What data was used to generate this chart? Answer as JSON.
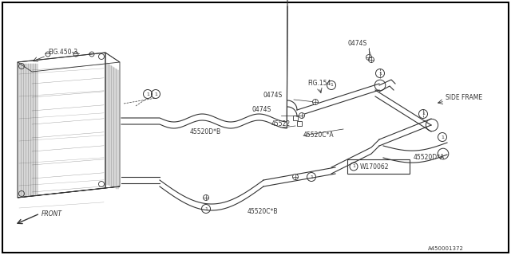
{
  "bg_color": "#ffffff",
  "line_color": "#333333",
  "diagram_id": "A450001372",
  "part_ref": "W170062",
  "labels": {
    "fig450": "FIG.450-3",
    "fig154": "FIG.154",
    "side_frame": "SIDE FRAME",
    "front": "FRONT",
    "p0474S_top": "0474S",
    "p0474S_mid1": "0474S",
    "p0474S_mid2": "0474S",
    "p45520DA": "45520D*A",
    "p45520CA": "45520C*A",
    "p45520DB": "45520D*B",
    "p45520CB": "45520C*B",
    "p45522": "45522"
  }
}
